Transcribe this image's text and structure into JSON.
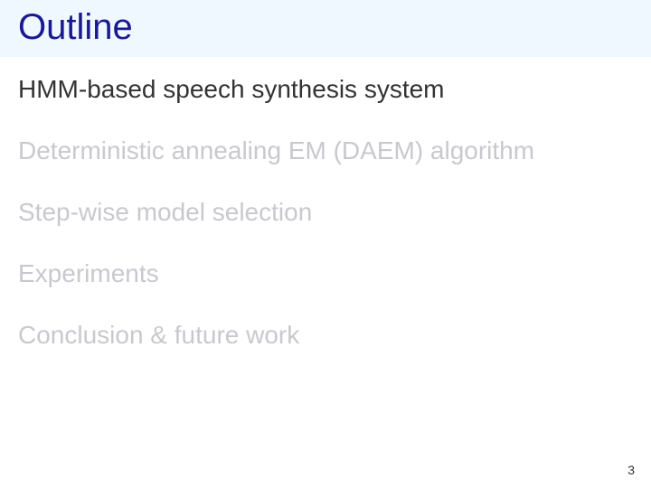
{
  "title": {
    "text": "Outline",
    "color": "#1a1a8f",
    "background": "#f0f8ff",
    "fontsize": 40
  },
  "items": [
    {
      "text": "HMM-based speech synthesis system",
      "color": "#333333"
    },
    {
      "text": "Deterministic annealing EM (DAEM) algorithm",
      "color": "#c8c8cf"
    },
    {
      "text": "Step-wise model selection",
      "color": "#c8c8cf"
    },
    {
      "text": "Experiments",
      "color": "#c8c8cf"
    },
    {
      "text": "Conclusion & future work",
      "color": "#c8c8cf"
    }
  ],
  "page_number": "3",
  "item_fontsize": 28,
  "item_spacing": 36
}
